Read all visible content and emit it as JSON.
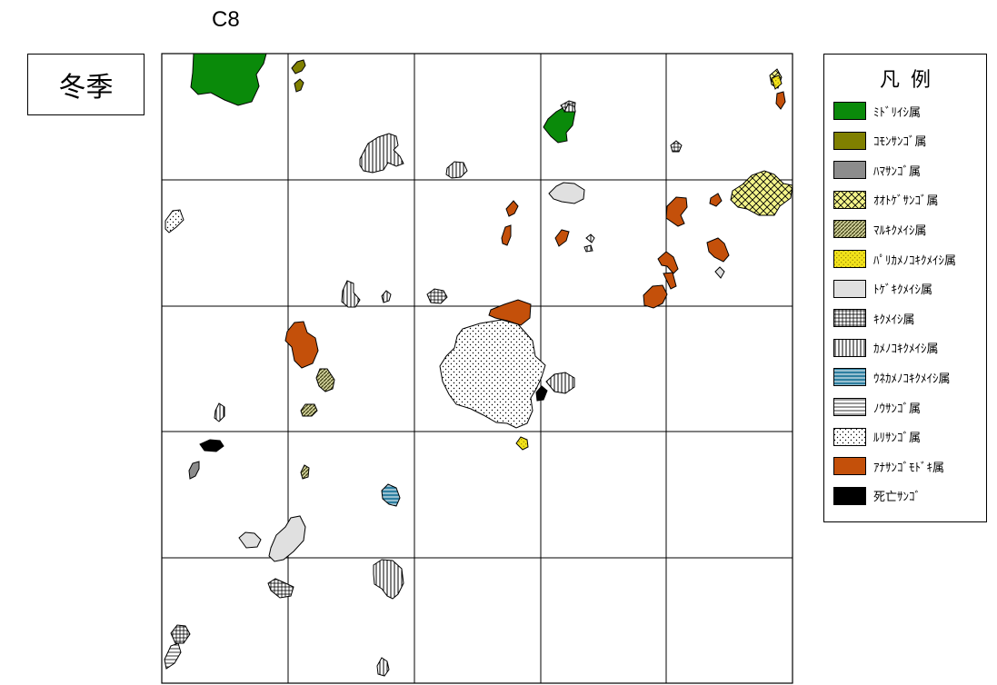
{
  "map_code": "C8",
  "season": "冬季",
  "legend": {
    "title": "凡例",
    "items": [
      {
        "label": "ﾐﾄﾞﾘｲｼ属",
        "pattern": "solid",
        "color": "#0a8a0a",
        "icon": "green-solid-swatch"
      },
      {
        "label": "ｺﾓﾝｻﾝｺﾞ属",
        "pattern": "solid",
        "color": "#808000",
        "icon": "olive-solid-swatch"
      },
      {
        "label": "ﾊﾏｻﾝｺﾞ属",
        "pattern": "solid",
        "color": "#8c8c8c",
        "icon": "gray-solid-swatch"
      },
      {
        "label": "ｵｵﾄｹﾞｻﾝｺﾞ属",
        "pattern": "crosshatch",
        "color": "#f4f48a",
        "icon": "yellow-crosshatch-swatch"
      },
      {
        "label": "ﾏﾙｷｸﾒｲｼ属",
        "pattern": "diagonal",
        "color": "#6b6b2a",
        "icon": "olive-diagonal-swatch"
      },
      {
        "label": "ﾊﾟﾘｶﾒﾉｺｷｸﾒｲｼ属",
        "pattern": "dots-yellow",
        "color": "#f2e21a",
        "icon": "yellow-dotted-swatch"
      },
      {
        "label": "ﾄｹﾞｷｸﾒｲｼ属",
        "pattern": "solid",
        "color": "#e0e0e0",
        "icon": "lightgray-solid-swatch"
      },
      {
        "label": "ｷｸﾒｲｼ属",
        "pattern": "grid",
        "color": "#ffffff",
        "icon": "grid-swatch"
      },
      {
        "label": "ｶﾒﾉｺｷｸﾒｲｼ属",
        "pattern": "vertical",
        "color": "#ffffff",
        "icon": "vertical-lines-swatch"
      },
      {
        "label": "ｳﾈｶﾒﾉｺｷｸﾒｲｼ属",
        "pattern": "horiz-blue",
        "color": "#2e7fa0",
        "icon": "blue-striped-swatch"
      },
      {
        "label": "ﾉｳｻﾝｺﾞ属",
        "pattern": "horizontal",
        "color": "#ffffff",
        "icon": "horizontal-lines-swatch"
      },
      {
        "label": "ﾙﾘｻﾝｺﾞ属",
        "pattern": "dots",
        "color": "#ffffff",
        "icon": "dotted-swatch"
      },
      {
        "label": "ｱﾅｻﾝｺﾞﾓﾄﾞｷ属",
        "pattern": "solid",
        "color": "#c4500a",
        "icon": "orange-solid-swatch"
      },
      {
        "label": "死亡ｻﾝｺﾞ",
        "pattern": "solid",
        "color": "#000000",
        "icon": "black-solid-swatch"
      }
    ]
  }
}
